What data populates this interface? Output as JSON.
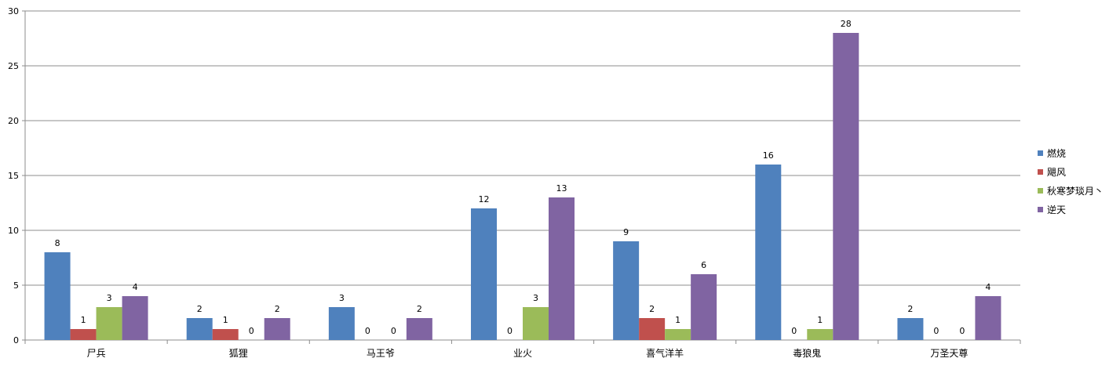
{
  "chart_data": {
    "type": "bar",
    "title": "",
    "xlabel": "",
    "ylabel": "",
    "ylim": [
      0,
      30
    ],
    "yticks": [
      0,
      5,
      10,
      15,
      20,
      25,
      30
    ],
    "grid": true,
    "legend_position": "right",
    "categories": [
      "尸兵",
      "狐狸",
      "马王爷",
      "业火",
      "喜气洋羊",
      "毒狼鬼",
      "万圣天尊"
    ],
    "series": [
      {
        "name": "燃烧",
        "color": "#4F81BD",
        "values": [
          8,
          2,
          3,
          12,
          9,
          16,
          2
        ]
      },
      {
        "name": "飓风",
        "color": "#C0504D",
        "values": [
          1,
          1,
          0,
          0,
          2,
          0,
          0
        ]
      },
      {
        "name": "秋寒梦琰月丶",
        "color": "#9BBB59",
        "values": [
          3,
          0,
          0,
          3,
          1,
          1,
          0
        ]
      },
      {
        "name": "逆天",
        "color": "#8064A2",
        "values": [
          4,
          2,
          2,
          13,
          6,
          28,
          4
        ]
      }
    ]
  }
}
